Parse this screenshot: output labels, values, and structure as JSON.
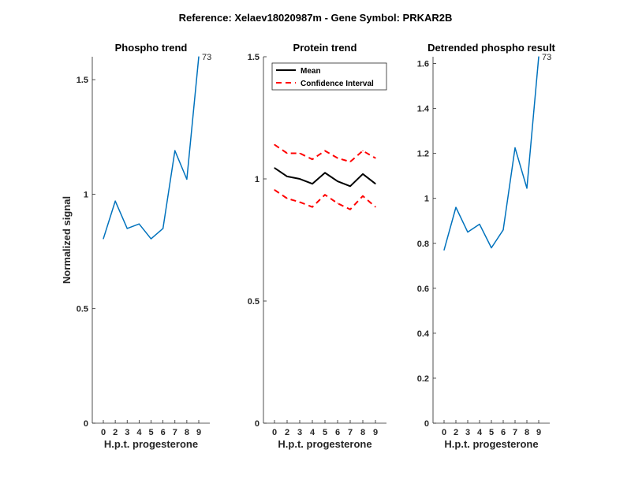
{
  "figure": {
    "suptitle": "Reference:  Xelaev18020987m - Gene Symbol:  PRKAR2B"
  },
  "colors": {
    "phospho_line": "#0072BD",
    "mean_line": "#000000",
    "ci_line": "#FF0000"
  },
  "chart_data": [
    {
      "type": "line",
      "title": "Phospho trend",
      "xlabel": "H.p.t. progesterone",
      "ylabel": "Normalized signal",
      "x": [
        0,
        1,
        2,
        3,
        4,
        5,
        6,
        7,
        8
      ],
      "xticklabels": [
        "0",
        "2",
        "3",
        "4",
        "5",
        "6",
        "7",
        "8",
        "9"
      ],
      "yticks": [
        0,
        0.5,
        1,
        1.5
      ],
      "yticklabels": [
        "0",
        "0.5",
        "1",
        "1.5"
      ],
      "ylim": [
        0,
        1.6
      ],
      "series": [
        {
          "values": [
            0.805,
            0.97,
            0.85,
            0.87,
            0.805,
            0.85,
            1.19,
            1.065,
            1.6
          ]
        }
      ],
      "annotations": [
        {
          "text": "73",
          "x": 8,
          "y": 1.6
        }
      ]
    },
    {
      "type": "line",
      "title": "Protein trend",
      "xlabel": "H.p.t. progesterone",
      "ylabel": "",
      "x": [
        0,
        1,
        2,
        3,
        4,
        5,
        6,
        7,
        8
      ],
      "xticklabels": [
        "0",
        "2",
        "3",
        "4",
        "5",
        "6",
        "7",
        "8",
        "9"
      ],
      "yticks": [
        0,
        0.5,
        1,
        1.5
      ],
      "yticklabels": [
        "0",
        "0.5",
        "1",
        "1.5"
      ],
      "ylim": [
        0,
        1.5
      ],
      "legend": {
        "position": "top-left",
        "entries": [
          "Mean",
          "Confidence Interval"
        ]
      },
      "series": [
        {
          "name": "Mean",
          "style": "solid",
          "values": [
            1.045,
            1.01,
            1.0,
            0.98,
            1.025,
            0.99,
            0.97,
            1.02,
            0.98
          ]
        },
        {
          "name": "Confidence Interval",
          "style": "dashed",
          "values": [
            1.14,
            1.105,
            1.105,
            1.08,
            1.115,
            1.085,
            1.07,
            1.115,
            1.085
          ]
        },
        {
          "name": "Confidence Interval",
          "style": "dashed",
          "values": [
            0.955,
            0.92,
            0.905,
            0.885,
            0.935,
            0.9,
            0.875,
            0.93,
            0.885
          ]
        }
      ]
    },
    {
      "type": "line",
      "title": "Detrended phospho result",
      "xlabel": "H.p.t. progesterone",
      "ylabel": "",
      "x": [
        0,
        1,
        2,
        3,
        4,
        5,
        6,
        7,
        8
      ],
      "xticklabels": [
        "0",
        "2",
        "3",
        "4",
        "5",
        "6",
        "7",
        "8",
        "9"
      ],
      "yticks": [
        0,
        0.2,
        0.4,
        0.6,
        0.8,
        1,
        1.2,
        1.4,
        1.6
      ],
      "yticklabels": [
        "0",
        "0.2",
        "0.4",
        "0.6",
        "0.8",
        "1",
        "1.2",
        "1.4",
        "1.6"
      ],
      "ylim": [
        0,
        1.63
      ],
      "series": [
        {
          "values": [
            0.77,
            0.96,
            0.85,
            0.885,
            0.78,
            0.86,
            1.225,
            1.045,
            1.63
          ]
        }
      ],
      "annotations": [
        {
          "text": "73",
          "x": 8,
          "y": 1.63
        }
      ]
    }
  ]
}
